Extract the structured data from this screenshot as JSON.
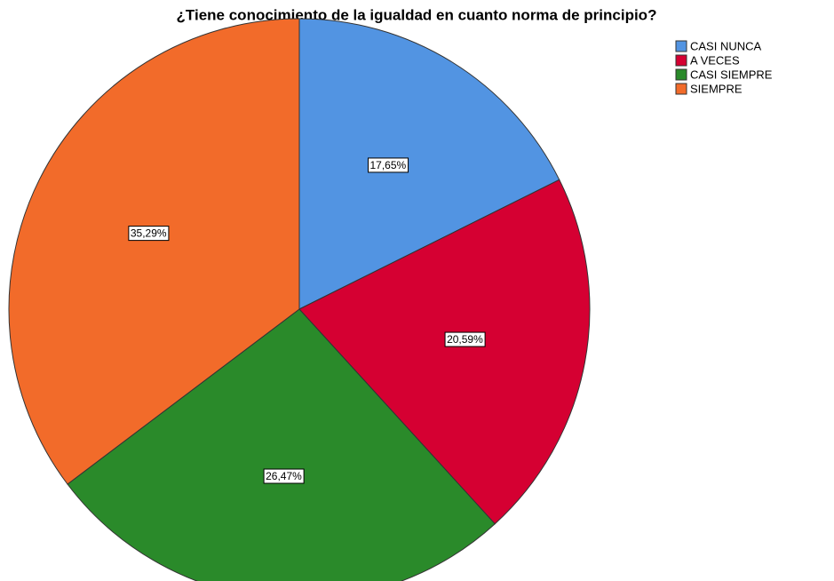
{
  "chart_data": {
    "type": "pie",
    "title": "¿Tiene conocimiento de la igualdad en cuanto norma de principio?",
    "categories": [
      "CASI NUNCA",
      "A VECES",
      "CASI SIEMPRE",
      "SIEMPRE"
    ],
    "values": [
      17.65,
      20.59,
      26.47,
      35.29
    ],
    "value_labels": [
      "17,65%",
      "20,59%",
      "26,47%",
      "35,29%"
    ],
    "colors": [
      "#5294e2",
      "#d50032",
      "#2a8a2a",
      "#f26b2a"
    ],
    "legend": "top-right"
  }
}
